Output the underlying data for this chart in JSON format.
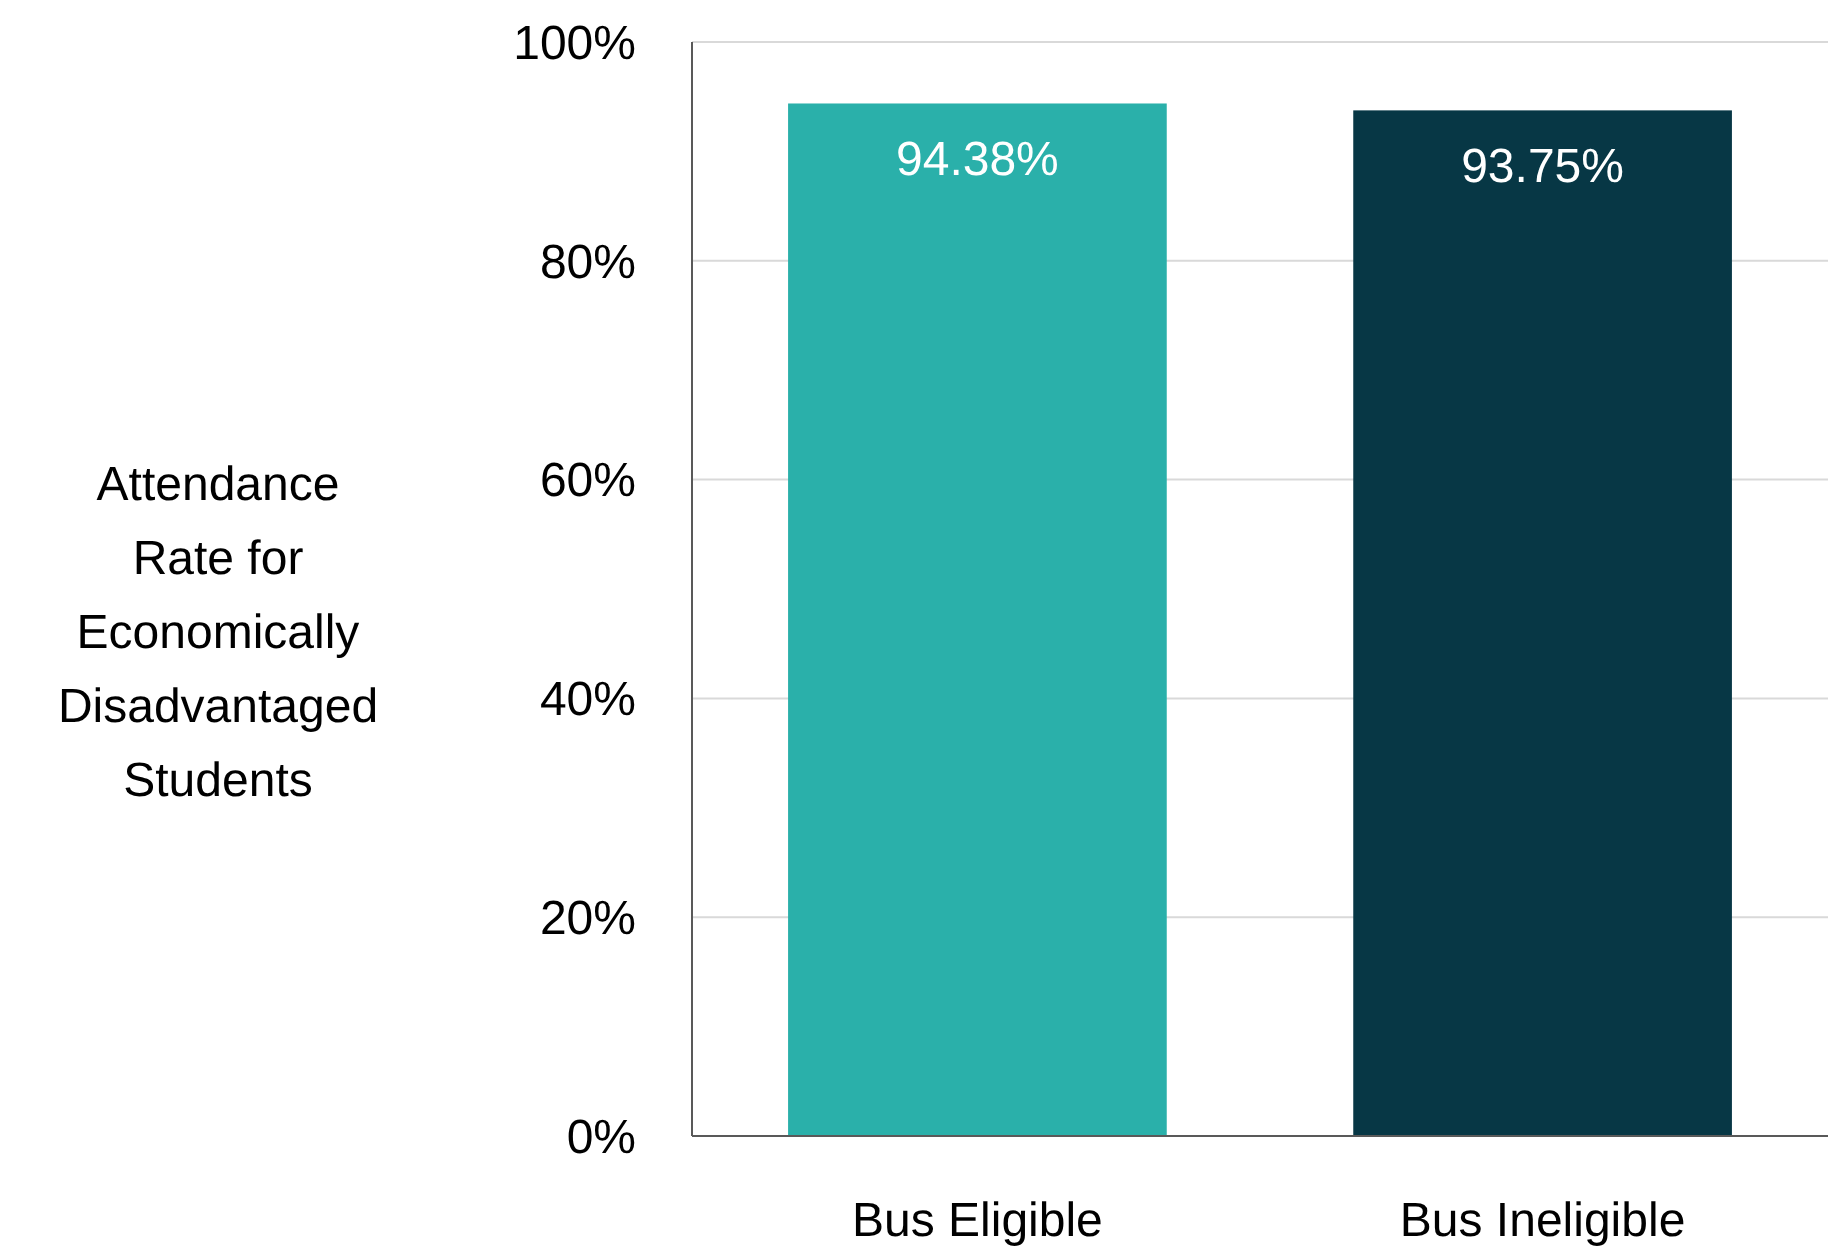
{
  "chart_data": {
    "type": "bar",
    "ylabel": "Attendance Rate for Economically Disadvantaged Students",
    "categories": [
      "Bus Eligible",
      "Bus Ineligible"
    ],
    "values": [
      94.38,
      93.75
    ],
    "colors": [
      "#2ab0aa",
      "#073745"
    ],
    "value_labels": [
      "94.38%",
      "93.75%"
    ],
    "ylim": [
      0,
      100
    ],
    "yticks": [
      {
        "value": 0,
        "label": "0%"
      },
      {
        "value": 20,
        "label": "20%"
      },
      {
        "value": 40,
        "label": "40%"
      },
      {
        "value": 60,
        "label": "60%"
      },
      {
        "value": 80,
        "label": "80%"
      },
      {
        "value": 100,
        "label": "100%"
      }
    ],
    "grid": "y"
  }
}
